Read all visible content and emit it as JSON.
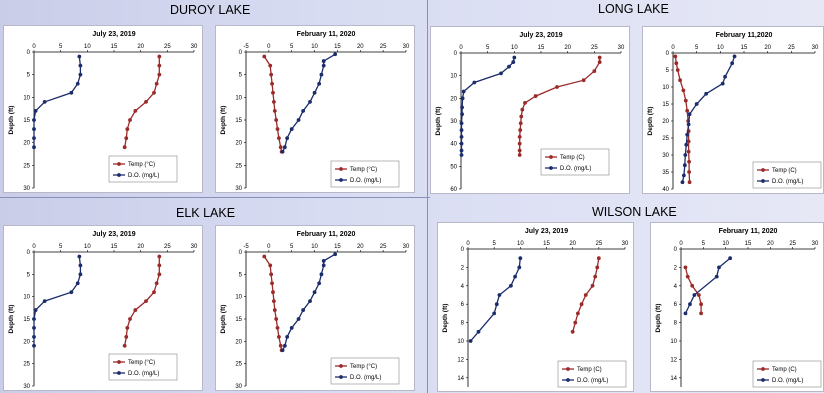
{
  "lakes": [
    {
      "name": "DUROY LAKE"
    },
    {
      "name": "LONG LAKE"
    },
    {
      "name": "ELK LAKE"
    },
    {
      "name": "WILSON LAKE"
    }
  ],
  "colors": {
    "temp": "#9b2a2a",
    "do": "#1c2d6b"
  },
  "chart_data": [
    {
      "id": "duroy-jul",
      "type": "line",
      "title": "July 23, 2019",
      "ylabel": "Depth (ft)",
      "xlim": [
        0,
        30
      ],
      "xticks": [
        0,
        5,
        10,
        15,
        20,
        25,
        30
      ],
      "ylim": [
        0,
        30
      ],
      "yticks": [
        0,
        5,
        10,
        15,
        20,
        25,
        30
      ],
      "legend": "bottom-right",
      "series": [
        {
          "name": "Temp (°C)",
          "color": "#9b2a2a",
          "points": [
            [
              23.5,
              1
            ],
            [
              23.5,
              3
            ],
            [
              23.5,
              5
            ],
            [
              23,
              7
            ],
            [
              22.5,
              9
            ],
            [
              21,
              11
            ],
            [
              19,
              13
            ],
            [
              18,
              15
            ],
            [
              17.5,
              17
            ],
            [
              17.3,
              19
            ],
            [
              17,
              21
            ]
          ]
        },
        {
          "name": "D.O. (mg/L)",
          "color": "#1c2d6b",
          "points": [
            [
              8.5,
              1
            ],
            [
              8.7,
              3
            ],
            [
              8.7,
              5
            ],
            [
              8.2,
              7
            ],
            [
              7,
              9
            ],
            [
              2,
              11
            ],
            [
              0.3,
              13
            ],
            [
              0,
              15
            ],
            [
              0,
              17
            ],
            [
              0,
              19
            ],
            [
              0,
              21
            ]
          ]
        }
      ]
    },
    {
      "id": "duroy-feb",
      "type": "line",
      "title": "February 11, 2020",
      "ylabel": "Depth (ft)",
      "xlim": [
        -5,
        30
      ],
      "xticks": [
        -5,
        0,
        5,
        10,
        15,
        20,
        25,
        30
      ],
      "ylim": [
        0,
        30
      ],
      "yticks": [
        0,
        5,
        10,
        15,
        20,
        25,
        30
      ],
      "legend": "bottom-right",
      "series": [
        {
          "name": "Temp (°C)",
          "color": "#9b2a2a",
          "points": [
            [
              -1,
              1
            ],
            [
              0.3,
              3
            ],
            [
              0.5,
              5
            ],
            [
              0.7,
              7
            ],
            [
              0.9,
              9
            ],
            [
              1.1,
              11
            ],
            [
              1.3,
              13
            ],
            [
              1.6,
              15
            ],
            [
              1.9,
              17
            ],
            [
              2.2,
              19
            ],
            [
              2.6,
              21
            ],
            [
              2.8,
              22
            ]
          ]
        },
        {
          "name": "D.O. (mg/L)",
          "color": "#1c2d6b",
          "points": [
            [
              14.5,
              0.5
            ],
            [
              12,
              2
            ],
            [
              12,
              3
            ],
            [
              11.5,
              5
            ],
            [
              11,
              7
            ],
            [
              10,
              9
            ],
            [
              9,
              11
            ],
            [
              7.5,
              13
            ],
            [
              6.5,
              15
            ],
            [
              5,
              17
            ],
            [
              4,
              19
            ],
            [
              3.5,
              21
            ],
            [
              3,
              22
            ]
          ]
        }
      ]
    },
    {
      "id": "long-jul",
      "type": "line",
      "title": "July 23, 2019",
      "ylabel": "Depth (ft)",
      "xlim": [
        0,
        30
      ],
      "xticks": [
        0,
        5,
        10,
        15,
        20,
        25,
        30
      ],
      "ylim": [
        0,
        60
      ],
      "yticks": [
        0,
        10,
        20,
        30,
        40,
        50,
        60
      ],
      "legend": "bottom-right",
      "series": [
        {
          "name": "Temp (C)",
          "color": "#9b2a2a",
          "points": [
            [
              26,
              2
            ],
            [
              26,
              4
            ],
            [
              25,
              8
            ],
            [
              23,
              12
            ],
            [
              18,
              15
            ],
            [
              14,
              19
            ],
            [
              12,
              22
            ],
            [
              11.5,
              25
            ],
            [
              11.3,
              28
            ],
            [
              11.2,
              31
            ],
            [
              11.1,
              34
            ],
            [
              11,
              37
            ],
            [
              11,
              40
            ],
            [
              11,
              43
            ],
            [
              11,
              45
            ]
          ]
        },
        {
          "name": "D.O. (mg/L)",
          "color": "#1c2d6b",
          "points": [
            [
              10,
              2
            ],
            [
              9.8,
              4
            ],
            [
              9,
              6
            ],
            [
              7.5,
              9
            ],
            [
              2.5,
              13
            ],
            [
              0.5,
              17
            ],
            [
              0.3,
              20
            ],
            [
              0.2,
              24
            ],
            [
              0.2,
              27
            ],
            [
              0.1,
              31
            ],
            [
              0.1,
              34
            ],
            [
              0.1,
              37
            ],
            [
              0.1,
              40
            ],
            [
              0.1,
              43
            ],
            [
              0.1,
              45
            ]
          ]
        }
      ]
    },
    {
      "id": "long-feb",
      "type": "line",
      "title": "February 11,2020",
      "ylabel": "Depth (ft)",
      "xlim": [
        0,
        30
      ],
      "xticks": [
        0,
        5,
        10,
        15,
        20,
        25,
        30
      ],
      "ylim": [
        0,
        40
      ],
      "yticks": [
        0,
        5,
        10,
        15,
        20,
        25,
        30,
        35,
        40
      ],
      "legend": "bottom-right",
      "series": [
        {
          "name": "Temp (C)",
          "color": "#9b2a2a",
          "points": [
            [
              0.5,
              1
            ],
            [
              0.7,
              3
            ],
            [
              1,
              5
            ],
            [
              1.5,
              8
            ],
            [
              2.2,
              11
            ],
            [
              2.7,
              14
            ],
            [
              3,
              17
            ],
            [
              3.2,
              20
            ],
            [
              3.3,
              23
            ],
            [
              3.3,
              26
            ],
            [
              3.3,
              29
            ],
            [
              3.4,
              32
            ],
            [
              3.4,
              35
            ],
            [
              3.5,
              38
            ]
          ]
        },
        {
          "name": "D.O. (mg/L)",
          "color": "#1c2d6b",
          "points": [
            [
              13,
              1
            ],
            [
              12.5,
              3
            ],
            [
              11,
              7
            ],
            [
              10.5,
              9
            ],
            [
              7,
              12
            ],
            [
              5,
              15
            ],
            [
              3.5,
              18
            ],
            [
              3.3,
              21
            ],
            [
              3,
              24
            ],
            [
              2.8,
              27
            ],
            [
              2.6,
              30
            ],
            [
              2.5,
              33
            ],
            [
              2.3,
              36
            ],
            [
              2,
              38
            ]
          ]
        }
      ]
    },
    {
      "id": "elk-jul",
      "type": "line",
      "title": "July 23, 2019",
      "ylabel": "Depth (ft)",
      "xlim": [
        0,
        30
      ],
      "xticks": [
        0,
        5,
        10,
        15,
        20,
        25,
        30
      ],
      "ylim": [
        0,
        30
      ],
      "yticks": [
        0,
        5,
        10,
        15,
        20,
        25,
        30
      ],
      "legend": "bottom-right",
      "series": [
        {
          "name": "Temp (°C)",
          "color": "#9b2a2a",
          "points": [
            [
              23.5,
              1
            ],
            [
              23.5,
              3
            ],
            [
              23.5,
              5
            ],
            [
              23,
              7
            ],
            [
              22.5,
              9
            ],
            [
              21,
              11
            ],
            [
              19,
              13
            ],
            [
              18,
              15
            ],
            [
              17.5,
              17
            ],
            [
              17.3,
              19
            ],
            [
              17,
              21
            ]
          ]
        },
        {
          "name": "D.O. (mg/L)",
          "color": "#1c2d6b",
          "points": [
            [
              8.5,
              1
            ],
            [
              8.7,
              3
            ],
            [
              8.7,
              5
            ],
            [
              8.2,
              7
            ],
            [
              7,
              9
            ],
            [
              2,
              11
            ],
            [
              0.3,
              13
            ],
            [
              0,
              15
            ],
            [
              0,
              17
            ],
            [
              0,
              19
            ],
            [
              0,
              21
            ]
          ]
        }
      ]
    },
    {
      "id": "elk-feb",
      "type": "line",
      "title": "February 11, 2020",
      "ylabel": "Depth (ft)",
      "xlim": [
        -5,
        30
      ],
      "xticks": [
        -5,
        0,
        5,
        10,
        15,
        20,
        25,
        30
      ],
      "ylim": [
        0,
        30
      ],
      "yticks": [
        0,
        5,
        10,
        15,
        20,
        25,
        30
      ],
      "legend": "bottom-right",
      "series": [
        {
          "name": "Temp (°C)",
          "color": "#9b2a2a",
          "points": [
            [
              -1,
              1
            ],
            [
              0.3,
              3
            ],
            [
              0.5,
              5
            ],
            [
              0.7,
              7
            ],
            [
              0.9,
              9
            ],
            [
              1.1,
              11
            ],
            [
              1.3,
              13
            ],
            [
              1.6,
              15
            ],
            [
              1.9,
              17
            ],
            [
              2.2,
              19
            ],
            [
              2.6,
              21
            ],
            [
              2.8,
              22
            ]
          ]
        },
        {
          "name": "D.O. (mg/L)",
          "color": "#1c2d6b",
          "points": [
            [
              14.5,
              0.5
            ],
            [
              12,
              2
            ],
            [
              12,
              3
            ],
            [
              11.5,
              5
            ],
            [
              11,
              7
            ],
            [
              10,
              9
            ],
            [
              9,
              11
            ],
            [
              7.5,
              13
            ],
            [
              6.5,
              15
            ],
            [
              5,
              17
            ],
            [
              4,
              19
            ],
            [
              3.5,
              21
            ],
            [
              3,
              22
            ]
          ]
        }
      ]
    },
    {
      "id": "wilson-jul",
      "type": "line",
      "title": "July 23, 2019",
      "ylabel": "Depth (ft)",
      "xlim": [
        0,
        30
      ],
      "xticks": [
        0,
        5,
        10,
        15,
        20,
        25,
        30
      ],
      "ylim": [
        0,
        15
      ],
      "yticks": [
        0,
        2,
        4,
        6,
        8,
        10,
        12,
        14
      ],
      "legend": "bottom-right",
      "series": [
        {
          "name": "Temp (C)",
          "color": "#9b2a2a",
          "points": [
            [
              25,
              1
            ],
            [
              24.7,
              2
            ],
            [
              24.3,
              3
            ],
            [
              23.8,
              4
            ],
            [
              22.5,
              5
            ],
            [
              21.7,
              6
            ],
            [
              21,
              7
            ],
            [
              20.5,
              8
            ],
            [
              20,
              9
            ]
          ]
        },
        {
          "name": "D.O. (mg/L)",
          "color": "#1c2d6b",
          "points": [
            [
              10,
              1
            ],
            [
              9.8,
              2
            ],
            [
              9,
              3
            ],
            [
              8.2,
              4
            ],
            [
              6,
              5
            ],
            [
              5.5,
              6
            ],
            [
              5,
              7
            ],
            [
              2,
              9
            ],
            [
              0.5,
              10
            ]
          ]
        }
      ]
    },
    {
      "id": "wilson-feb",
      "type": "line",
      "title": "February 11, 2020",
      "ylabel": "Depth (ft)",
      "xlim": [
        0,
        30
      ],
      "xticks": [
        0,
        5,
        10,
        15,
        20,
        25,
        30
      ],
      "ylim": [
        0,
        15
      ],
      "yticks": [
        0,
        2,
        4,
        6,
        8,
        10,
        12,
        14
      ],
      "legend": "bottom-right",
      "series": [
        {
          "name": "Temp (C)",
          "color": "#9b2a2a",
          "points": [
            [
              1,
              2
            ],
            [
              1.5,
              3
            ],
            [
              2.5,
              4
            ],
            [
              4,
              5
            ],
            [
              4.5,
              6
            ],
            [
              4.5,
              7
            ]
          ]
        },
        {
          "name": "D.O. (mg/L)",
          "color": "#1c2d6b",
          "points": [
            [
              11,
              1
            ],
            [
              8.5,
              2
            ],
            [
              8,
              3
            ],
            [
              3,
              5
            ],
            [
              2,
              6
            ],
            [
              1,
              7
            ]
          ]
        }
      ]
    }
  ]
}
